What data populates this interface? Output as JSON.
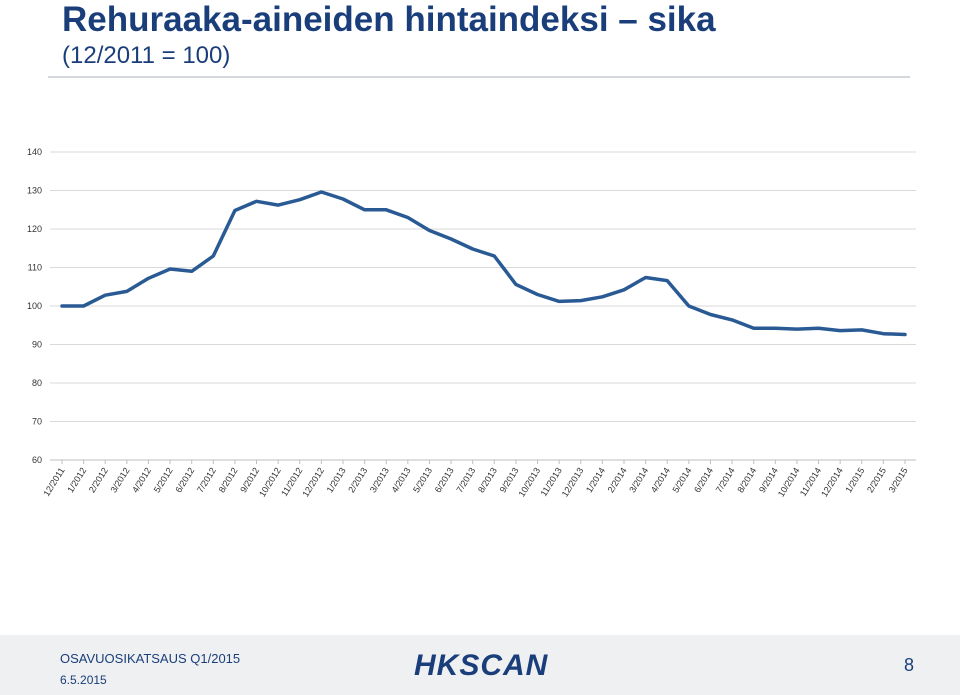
{
  "slide": {
    "title": "Rehuraaka-aineiden hintaindeksi – sika",
    "subtitle": "(12/2011 = 100)"
  },
  "footer": {
    "label": "OSAVUOSIKATSAUS Q1/2015",
    "date": "6.5.2015",
    "logo_text": "HKSCAN",
    "page_number": "8"
  },
  "colors": {
    "title": "#1a3e7a",
    "series_line": "#2a5a94",
    "grid": "#d9d9d9",
    "footer_bg": "#eef0f2"
  },
  "chart_data": {
    "type": "line",
    "title": "",
    "xlabel": "",
    "ylabel": "",
    "ylim": [
      60,
      140
    ],
    "yticks": [
      60,
      70,
      80,
      90,
      100,
      110,
      120,
      130,
      140
    ],
    "grid": true,
    "legend": "none",
    "categories": [
      "12/2011",
      "1/2012",
      "2/2012",
      "3/2012",
      "4/2012",
      "5/2012",
      "6/2012",
      "7/2012",
      "8/2012",
      "9/2012",
      "10/2012",
      "11/2012",
      "12/2012",
      "1/2013",
      "2/2013",
      "3/2013",
      "4/2013",
      "5/2013",
      "6/2013",
      "7/2013",
      "8/2013",
      "9/2013",
      "10/2013",
      "11/2013",
      "12/2013",
      "1/2014",
      "2/2014",
      "3/2014",
      "4/2014",
      "5/2014",
      "6/2014",
      "7/2014",
      "8/2014",
      "9/2014",
      "10/2014",
      "11/2014",
      "12/2014",
      "1/2015",
      "2/2015",
      "3/2015"
    ],
    "series": [
      {
        "values": [
          100,
          100,
          102.8,
          103.8,
          107.2,
          109.6,
          109.0,
          113.0,
          124.8,
          127.2,
          126.2,
          127.6,
          129.6,
          127.8,
          125.0,
          125.0,
          123.0,
          119.6,
          117.4,
          114.8,
          113.0,
          105.6,
          103.0,
          101.2,
          101.4,
          102.4,
          104.2,
          107.4,
          106.6,
          100.0,
          97.8,
          96.4,
          94.2,
          94.2,
          94.0,
          94.2,
          93.6,
          93.8,
          92.8,
          92.6
        ]
      }
    ]
  }
}
